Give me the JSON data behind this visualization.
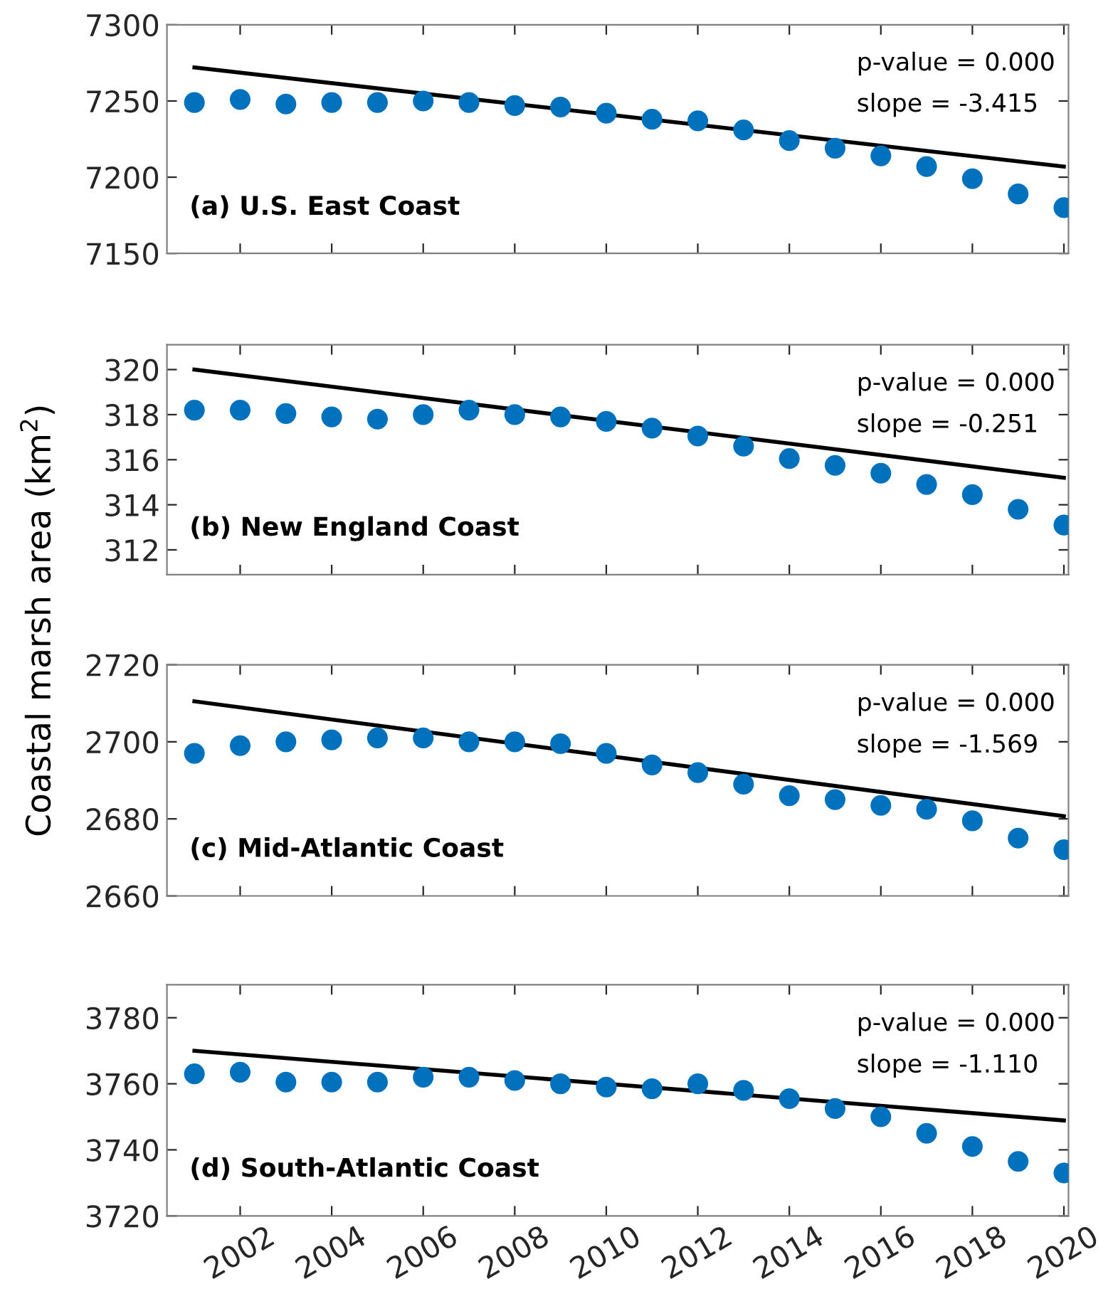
{
  "chart_data": [
    {
      "type": "scatter",
      "ylabel": "Coastal marsh area (km$^{2}$)",
      "xlim": [
        2000.4,
        2020.1
      ],
      "xticks": [
        2002,
        2004,
        2006,
        2008,
        2010,
        2012,
        2014,
        2016,
        2018,
        2020
      ],
      "ylim": [
        7150,
        7300
      ],
      "yticks": [
        7150,
        7200,
        7250,
        7300
      ],
      "tick_labels": "y",
      "grid": false,
      "legend": false,
      "annotations": [
        "(a) U.S. East Coast",
        "p-value = 0.000",
        "slope = -3.415"
      ],
      "series": [
        {
          "marker": "circle",
          "color": "#0072bd",
          "x": [
            2001,
            2002,
            2003,
            2004,
            2005,
            2006,
            2007,
            2008,
            2009,
            2010,
            2011,
            2012,
            2013,
            2014,
            2015,
            2016,
            2017,
            2018,
            2019,
            2020
          ],
          "values": [
            7249,
            7251,
            7248,
            7249,
            7249,
            7250,
            7249,
            7247,
            7246,
            7242,
            7238,
            7237,
            7231,
            7224,
            7219,
            7214,
            7207,
            7199,
            7189,
            7180
          ]
        },
        {
          "type": "line",
          "color": "#000000",
          "x": [
            2001,
            2020
          ],
          "values": [
            7272,
            7207
          ]
        }
      ]
    },
    {
      "type": "scatter",
      "xlim": [
        2000.4,
        2020.1
      ],
      "xticks": [
        2002,
        2004,
        2006,
        2008,
        2010,
        2012,
        2014,
        2016,
        2018,
        2020
      ],
      "ylim": [
        310.9,
        321.1
      ],
      "yticks": [
        312,
        314,
        316,
        318,
        320
      ],
      "tick_labels": "y",
      "grid": false,
      "legend": false,
      "annotations": [
        "(b) New England Coast",
        "p-value = 0.000",
        "slope = -0.251"
      ],
      "series": [
        {
          "marker": "circle",
          "color": "#0072bd",
          "x": [
            2001,
            2002,
            2003,
            2004,
            2005,
            2006,
            2007,
            2008,
            2009,
            2010,
            2011,
            2012,
            2013,
            2014,
            2015,
            2016,
            2017,
            2018,
            2019,
            2020
          ],
          "values": [
            318.2,
            318.2,
            318.05,
            317.9,
            317.8,
            318.0,
            318.2,
            318.0,
            317.9,
            317.7,
            317.4,
            317.05,
            316.6,
            316.05,
            315.75,
            315.4,
            314.9,
            314.45,
            313.8,
            313.1
          ]
        },
        {
          "type": "line",
          "color": "#000000",
          "x": [
            2001,
            2020
          ],
          "values": [
            320.0,
            315.2
          ]
        }
      ]
    },
    {
      "type": "scatter",
      "xlim": [
        2000.4,
        2020.1
      ],
      "xticks": [
        2002,
        2004,
        2006,
        2008,
        2010,
        2012,
        2014,
        2016,
        2018,
        2020
      ],
      "ylim": [
        2660,
        2720
      ],
      "yticks": [
        2660,
        2680,
        2700,
        2720
      ],
      "tick_labels": "y",
      "grid": false,
      "legend": false,
      "annotations": [
        "(c) Mid-Atlantic Coast",
        "p-value = 0.000",
        "slope = -1.569"
      ],
      "series": [
        {
          "marker": "circle",
          "color": "#0072bd",
          "x": [
            2001,
            2002,
            2003,
            2004,
            2005,
            2006,
            2007,
            2008,
            2009,
            2010,
            2011,
            2012,
            2013,
            2014,
            2015,
            2016,
            2017,
            2018,
            2019,
            2020
          ],
          "values": [
            2697,
            2699,
            2700,
            2700.5,
            2701,
            2701,
            2700,
            2700,
            2699.5,
            2697,
            2694,
            2692,
            2689,
            2686,
            2685,
            2683.5,
            2682.5,
            2679.5,
            2675,
            2672
          ]
        },
        {
          "type": "line",
          "color": "#000000",
          "x": [
            2001,
            2020
          ],
          "values": [
            2710.5,
            2680.7
          ]
        }
      ]
    },
    {
      "type": "scatter",
      "xlim": [
        2000.4,
        2020.1
      ],
      "xticks": [
        2002,
        2004,
        2006,
        2008,
        2010,
        2012,
        2014,
        2016,
        2018,
        2020
      ],
      "ylim": [
        3720,
        3790
      ],
      "yticks": [
        3720,
        3740,
        3760,
        3780
      ],
      "grid": false,
      "legend": false,
      "annotations": [
        "(d) South-Atlantic Coast",
        "p-value = 0.000",
        "slope = -1.110"
      ],
      "series": [
        {
          "marker": "circle",
          "color": "#0072bd",
          "x": [
            2001,
            2002,
            2003,
            2004,
            2005,
            2006,
            2007,
            2008,
            2009,
            2010,
            2011,
            2012,
            2013,
            2014,
            2015,
            2016,
            2017,
            2018,
            2019,
            2020
          ],
          "values": [
            3763,
            3763.5,
            3760.5,
            3760.5,
            3760.5,
            3762,
            3762,
            3761,
            3760,
            3759,
            3758.5,
            3760,
            3758,
            3755.5,
            3752.5,
            3750,
            3745,
            3741,
            3736.5,
            3733
          ]
        },
        {
          "type": "line",
          "color": "#000000",
          "x": [
            2001,
            2020
          ],
          "values": [
            3770,
            3748.9
          ]
        }
      ]
    }
  ]
}
